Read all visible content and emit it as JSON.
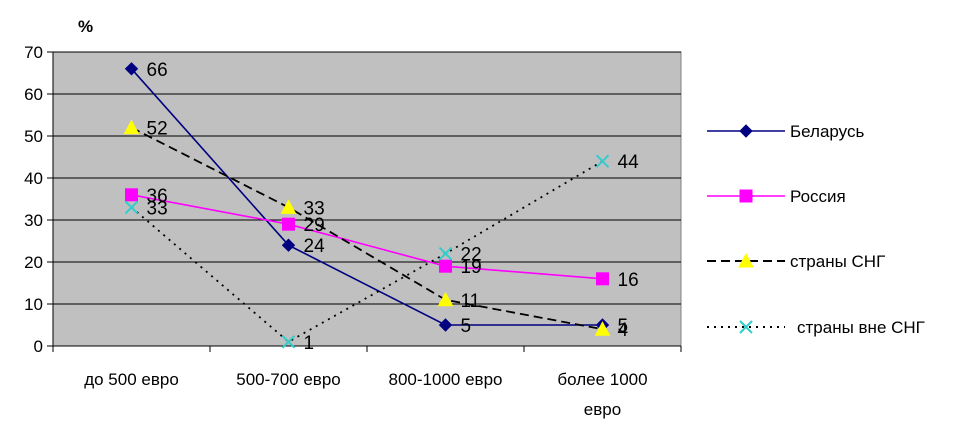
{
  "chart_data": {
    "type": "line",
    "unit_label": "%",
    "categories": [
      [
        "до 500 евро"
      ],
      [
        "500-700 евро"
      ],
      [
        "800-1000 евро"
      ],
      [
        "более 1000",
        "евро"
      ]
    ],
    "ylim": [
      0,
      70
    ],
    "yticks": [
      0,
      10,
      20,
      30,
      40,
      50,
      60,
      70
    ],
    "grid": true,
    "legend_position": "right",
    "plot_background": "#c0c0c0",
    "series": [
      {
        "name": "Беларусь",
        "values": [
          66,
          24,
          5,
          5
        ],
        "color": "#000080",
        "marker": "diamond",
        "marker_color": "#000080",
        "line_style": "solid"
      },
      {
        "name": "Россия",
        "values": [
          36,
          29,
          19,
          16
        ],
        "color": "#ff00ff",
        "marker": "square",
        "marker_color": "#ff00ff",
        "line_style": "solid"
      },
      {
        "name": "страны СНГ",
        "values": [
          52,
          33,
          11,
          4
        ],
        "color": "#000000",
        "marker": "triangle",
        "marker_color": "#ffff00",
        "line_style": "dashed"
      },
      {
        "name": "страны вне СНГ",
        "values": [
          33,
          1,
          22,
          44
        ],
        "color": "#000000",
        "marker": "x",
        "marker_color": "#33cccc",
        "line_style": "dotted"
      }
    ]
  }
}
